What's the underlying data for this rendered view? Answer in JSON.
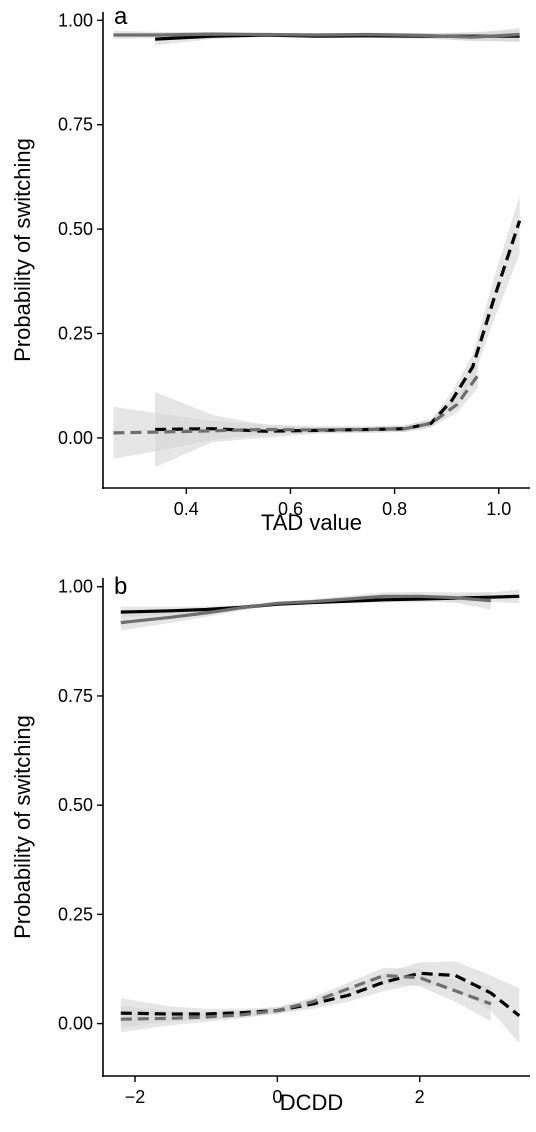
{
  "chart_data": [
    {
      "type": "line",
      "panel_label": "a",
      "xlabel": "TAD value",
      "ylabel": "Probability of switching",
      "xlim": [
        0.24,
        1.06
      ],
      "ylim": [
        -0.12,
        1.02
      ],
      "xticks": [
        0.4,
        0.6,
        0.8,
        1.0
      ],
      "xtick_labels": [
        "0.4",
        "0.6",
        "0.8",
        "1.0"
      ],
      "yticks": [
        0.0,
        0.25,
        0.5,
        0.75,
        1.0
      ],
      "ytick_labels": [
        "0.00",
        "0.25",
        "0.50",
        "0.75",
        "1.00"
      ],
      "grid": false,
      "legend": "none",
      "series": [
        {
          "color": "#000000",
          "dash": "solid",
          "ribbon": "#d3d3d3",
          "x": [
            0.34,
            0.45,
            0.55,
            0.65,
            0.75,
            0.85,
            0.95,
            1.04
          ],
          "y": [
            0.955,
            0.962,
            0.965,
            0.962,
            0.963,
            0.962,
            0.962,
            0.962
          ],
          "lower": [
            0.94,
            0.955,
            0.96,
            0.958,
            0.958,
            0.956,
            0.952,
            0.948
          ],
          "upper": [
            0.97,
            0.97,
            0.97,
            0.967,
            0.968,
            0.968,
            0.972,
            0.976
          ]
        },
        {
          "color": "#6e6e6e",
          "dash": "solid",
          "ribbon": "#d3d3d3",
          "x": [
            0.26,
            0.35,
            0.45,
            0.55,
            0.65,
            0.75,
            0.85,
            0.95,
            1.04
          ],
          "y": [
            0.965,
            0.965,
            0.967,
            0.966,
            0.965,
            0.966,
            0.964,
            0.96,
            0.966
          ],
          "lower": [
            0.955,
            0.958,
            0.962,
            0.962,
            0.961,
            0.962,
            0.958,
            0.95,
            0.95
          ],
          "upper": [
            0.975,
            0.972,
            0.972,
            0.97,
            0.969,
            0.97,
            0.97,
            0.97,
            0.982
          ]
        },
        {
          "color": "#000000",
          "dash": "dashed",
          "ribbon": "#d3d3d3",
          "x": [
            0.34,
            0.45,
            0.55,
            0.65,
            0.75,
            0.82,
            0.87,
            0.91,
            0.95,
            0.99,
            1.04
          ],
          "y": [
            0.02,
            0.022,
            0.016,
            0.018,
            0.02,
            0.022,
            0.035,
            0.09,
            0.17,
            0.33,
            0.52
          ],
          "lower": [
            -0.07,
            -0.01,
            0.0,
            0.01,
            0.012,
            0.014,
            0.025,
            0.07,
            0.14,
            0.28,
            0.44
          ],
          "upper": [
            0.11,
            0.055,
            0.032,
            0.028,
            0.028,
            0.03,
            0.045,
            0.11,
            0.2,
            0.38,
            0.58
          ]
        },
        {
          "color": "#6e6e6e",
          "dash": "dashed",
          "ribbon": "#d3d3d3",
          "x": [
            0.26,
            0.35,
            0.45,
            0.55,
            0.65,
            0.75,
            0.82,
            0.87,
            0.92,
            0.96
          ],
          "y": [
            0.012,
            0.014,
            0.017,
            0.02,
            0.019,
            0.02,
            0.022,
            0.035,
            0.08,
            0.15
          ],
          "lower": [
            -0.05,
            -0.03,
            -0.005,
            0.008,
            0.012,
            0.013,
            0.015,
            0.025,
            0.06,
            0.12
          ],
          "upper": [
            0.075,
            0.058,
            0.04,
            0.032,
            0.026,
            0.027,
            0.03,
            0.045,
            0.1,
            0.18
          ]
        }
      ]
    },
    {
      "type": "line",
      "panel_label": "b",
      "xlabel": "DCDD",
      "ylabel": "Probability of switching",
      "xlim": [
        -2.45,
        3.55
      ],
      "ylim": [
        -0.12,
        1.02
      ],
      "xticks": [
        -2,
        0,
        2
      ],
      "xtick_labels": [
        "−2",
        "0",
        "2"
      ],
      "yticks": [
        0.0,
        0.25,
        0.5,
        0.75,
        1.0
      ],
      "ytick_labels": [
        "0.00",
        "0.25",
        "0.50",
        "0.75",
        "1.00"
      ],
      "grid": false,
      "legend": "none",
      "series": [
        {
          "color": "#000000",
          "dash": "solid",
          "ribbon": "#d3d3d3",
          "x": [
            -2.2,
            -1.5,
            -1.0,
            -0.5,
            0.0,
            0.5,
            1.0,
            1.5,
            2.0,
            2.5,
            3.0,
            3.4
          ],
          "y": [
            0.942,
            0.945,
            0.948,
            0.953,
            0.96,
            0.964,
            0.967,
            0.97,
            0.972,
            0.974,
            0.976,
            0.978
          ],
          "lower": [
            0.93,
            0.936,
            0.941,
            0.948,
            0.956,
            0.96,
            0.962,
            0.964,
            0.965,
            0.965,
            0.965,
            0.962
          ],
          "upper": [
            0.954,
            0.954,
            0.955,
            0.958,
            0.964,
            0.968,
            0.972,
            0.976,
            0.979,
            0.983,
            0.987,
            0.994
          ]
        },
        {
          "color": "#6e6e6e",
          "dash": "solid",
          "ribbon": "#d3d3d3",
          "x": [
            -2.2,
            -1.5,
            -1.0,
            -0.5,
            0.0,
            0.5,
            1.0,
            1.5,
            2.0,
            2.5,
            3.0
          ],
          "y": [
            0.918,
            0.93,
            0.94,
            0.952,
            0.962,
            0.966,
            0.972,
            0.978,
            0.978,
            0.975,
            0.968
          ],
          "lower": [
            0.9,
            0.917,
            0.931,
            0.946,
            0.958,
            0.961,
            0.965,
            0.969,
            0.968,
            0.963,
            0.948
          ],
          "upper": [
            0.936,
            0.943,
            0.949,
            0.958,
            0.966,
            0.971,
            0.979,
            0.987,
            0.988,
            0.987,
            0.988
          ]
        },
        {
          "color": "#000000",
          "dash": "dashed",
          "ribbon": "#d3d3d3",
          "x": [
            -2.2,
            -1.5,
            -1.0,
            -0.5,
            0.0,
            0.5,
            1.0,
            1.5,
            2.0,
            2.5,
            3.0,
            3.4
          ],
          "y": [
            0.024,
            0.022,
            0.022,
            0.025,
            0.03,
            0.045,
            0.065,
            0.095,
            0.115,
            0.11,
            0.07,
            0.018
          ],
          "lower": [
            -0.01,
            0.005,
            0.01,
            0.016,
            0.022,
            0.034,
            0.05,
            0.075,
            0.09,
            0.078,
            0.03,
            -0.045
          ],
          "upper": [
            0.058,
            0.039,
            0.034,
            0.034,
            0.038,
            0.056,
            0.08,
            0.115,
            0.14,
            0.142,
            0.11,
            0.081
          ]
        },
        {
          "color": "#6e6e6e",
          "dash": "dashed",
          "ribbon": "#d3d3d3",
          "x": [
            -2.2,
            -1.5,
            -1.0,
            -0.5,
            0.0,
            0.5,
            1.0,
            1.5,
            2.0,
            2.5,
            3.0
          ],
          "y": [
            0.01,
            0.012,
            0.015,
            0.02,
            0.03,
            0.05,
            0.08,
            0.11,
            0.105,
            0.075,
            0.045
          ],
          "lower": [
            -0.02,
            -0.004,
            0.004,
            0.012,
            0.023,
            0.04,
            0.066,
            0.092,
            0.085,
            0.05,
            0.005
          ],
          "upper": [
            0.04,
            0.028,
            0.026,
            0.028,
            0.037,
            0.06,
            0.094,
            0.128,
            0.125,
            0.1,
            0.085
          ]
        }
      ]
    }
  ]
}
